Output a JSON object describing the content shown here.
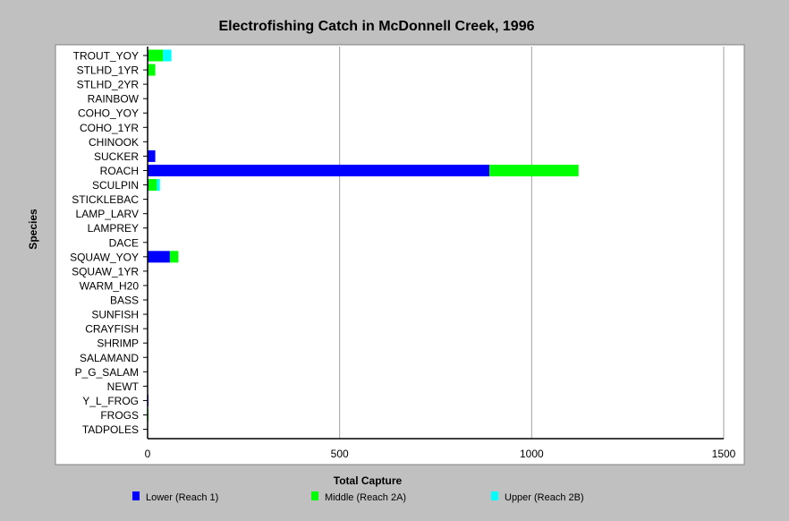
{
  "chart_data": {
    "type": "bar",
    "orientation": "horizontal",
    "stacked": true,
    "title": "Electrofishing Catch in McDonnell Creek, 1996",
    "xlabel": "Total Capture",
    "ylabel": "Species",
    "xlim": [
      0,
      1500
    ],
    "xticks": [
      0,
      500,
      1000,
      1500
    ],
    "grid": true,
    "legend_position": "bottom",
    "categories": [
      "TROUT_YOY",
      "STLHD_1YR",
      "STLHD_2YR",
      "RAINBOW",
      "COHO_YOY",
      "COHO_1YR",
      "CHINOOK",
      "SUCKER",
      "ROACH",
      "SCULPIN",
      "STICKLEBAC",
      "LAMP_LARV",
      "LAMPREY",
      "DACE",
      "SQUAW_YOY",
      "SQUAW_1YR",
      "WARM_H20",
      "BASS",
      "SUNFISH",
      "CRAYFISH",
      "SHRIMP",
      "SALAMAND",
      "P_G_SALAM",
      "NEWT",
      "Y_L_FROG",
      "FROGS",
      "TADPOLES"
    ],
    "series": [
      {
        "name": "Lower (Reach 1)",
        "color": "#0000ff",
        "values": [
          2,
          0,
          0,
          0,
          0,
          0,
          0,
          20,
          890,
          2,
          0,
          0,
          0,
          0,
          58,
          0,
          0,
          0,
          0,
          0,
          0,
          0,
          0,
          0,
          2,
          0,
          0
        ]
      },
      {
        "name": "Middle (Reach 2A)",
        "color": "#00ff00",
        "values": [
          38,
          20,
          0,
          0,
          0,
          0,
          0,
          0,
          232,
          22,
          0,
          0,
          0,
          0,
          22,
          0,
          0,
          0,
          0,
          0,
          0,
          0,
          0,
          0,
          0,
          2,
          0
        ]
      },
      {
        "name": "Upper (Reach 2B)",
        "color": "#00ffff",
        "values": [
          22,
          0,
          0,
          0,
          0,
          0,
          0,
          0,
          0,
          8,
          0,
          0,
          0,
          0,
          0,
          0,
          0,
          0,
          0,
          0,
          0,
          0,
          0,
          0,
          0,
          0,
          0
        ]
      }
    ]
  },
  "colors": {
    "background": "#c0c0c0",
    "plot_area": "#ffffff",
    "gridline": "#a0a0a0"
  }
}
